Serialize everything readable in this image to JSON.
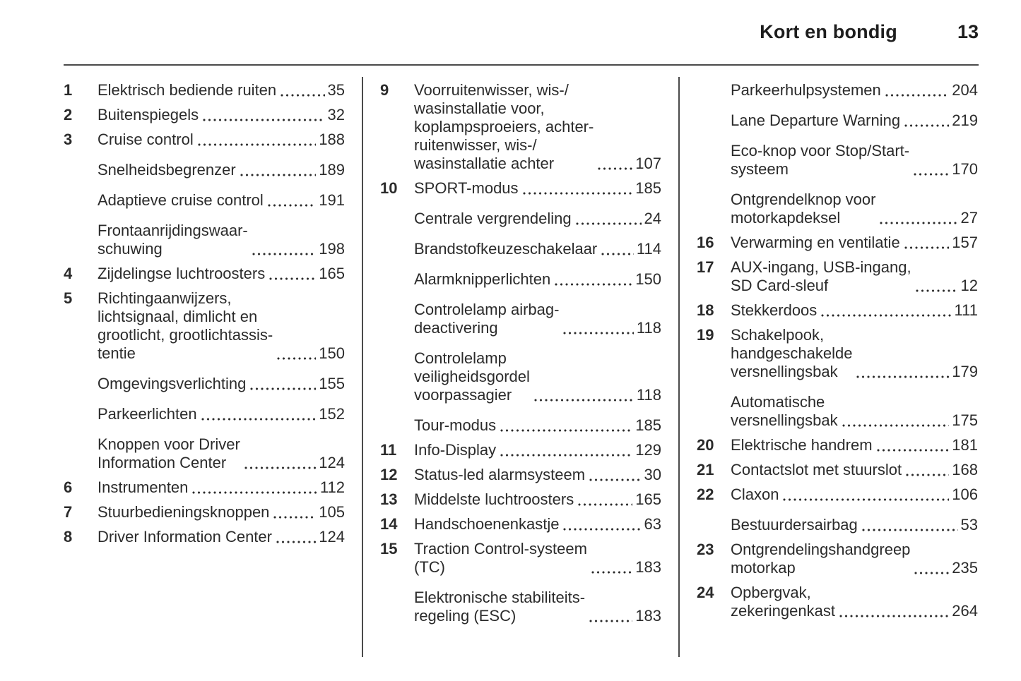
{
  "header": {
    "chapter_title": "Kort en bondig",
    "page_number": "13"
  },
  "colors": {
    "text": "#2b2b2b",
    "rule": "#4a4a4a"
  },
  "columns": [
    {
      "entries": [
        {
          "num": "1",
          "label": "Elektrisch bediende ruiten",
          "page": "35"
        },
        {
          "num": "2",
          "label": "Buitenspiegels",
          "page": "32"
        },
        {
          "num": "3",
          "label": "Cruise control",
          "page": "188"
        },
        {
          "num": "",
          "label": "Snelheidsbegrenzer",
          "page": "189"
        },
        {
          "num": "",
          "label": "Adaptieve cruise control",
          "page": "191"
        },
        {
          "num": "",
          "label": "Frontaanrijdingswaar-\nschuwing",
          "page": "198"
        },
        {
          "num": "4",
          "label": "Zijdelingse luchtroosters",
          "page": "165"
        },
        {
          "num": "5",
          "label": "Richtingaanwijzers,\nlichtsignaal, dimlicht en\ngrootlicht, grootlichtassis-\ntentie",
          "page": "150"
        },
        {
          "num": "",
          "label": "Omgevingsverlichting",
          "page": "155"
        },
        {
          "num": "",
          "label": "Parkeerlichten",
          "page": "152"
        },
        {
          "num": "",
          "label": "Knoppen voor Driver\nInformation Center",
          "page": "124"
        },
        {
          "num": "6",
          "label": "Instrumenten",
          "page": "112"
        },
        {
          "num": "7",
          "label": "Stuurbedieningsknoppen",
          "page": "105"
        },
        {
          "num": "8",
          "label": "Driver Information Center",
          "page": "124"
        }
      ]
    },
    {
      "entries": [
        {
          "num": "9",
          "label": "Voorruitenwisser, wis-/\nwasinstallatie voor,\nkoplampsproeiers, achter-\nruitenwisser, wis-/\nwasinstallatie achter",
          "page": "107"
        },
        {
          "num": "10",
          "label": "SPORT-modus",
          "page": "185"
        },
        {
          "num": "",
          "label": "Centrale vergrendeling",
          "page": "24"
        },
        {
          "num": "",
          "label": "Brandstofkeuzeschakelaar",
          "page": "114"
        },
        {
          "num": "",
          "label": "Alarmknipperlichten",
          "page": "150"
        },
        {
          "num": "",
          "label": "Controlelamp airbag-\ndeactivering",
          "page": "118"
        },
        {
          "num": "",
          "label": "Controlelamp\nveiligheidsgordel\nvoorpassagier",
          "page": "118"
        },
        {
          "num": "",
          "label": "Tour-modus",
          "page": "185"
        },
        {
          "num": "11",
          "label": "Info-Display",
          "page": "129"
        },
        {
          "num": "12",
          "label": "Status-led alarmsysteem",
          "page": "30"
        },
        {
          "num": "13",
          "label": "Middelste luchtroosters",
          "page": "165"
        },
        {
          "num": "14",
          "label": "Handschoenenkastje",
          "page": "63"
        },
        {
          "num": "15",
          "label": "Traction Control-systeem\n(TC)",
          "page": "183"
        },
        {
          "num": "",
          "label": "Elektronische stabiliteits-\nregeling (ESC)",
          "page": "183"
        }
      ]
    },
    {
      "entries": [
        {
          "num": "",
          "label": "Parkeerhulpsystemen",
          "page": "204"
        },
        {
          "num": "",
          "label": "Lane Departure Warning",
          "page": "219"
        },
        {
          "num": "",
          "label": "Eco-knop voor Stop/Start-\nsysteem",
          "page": "170"
        },
        {
          "num": "",
          "label": "Ontgrendelknop voor\nmotorkapdeksel",
          "page": "27"
        },
        {
          "num": "16",
          "label": "Verwarming en ventilatie",
          "page": "157"
        },
        {
          "num": "17",
          "label": "AUX-ingang, USB-ingang,\nSD Card-sleuf",
          "page": "12"
        },
        {
          "num": "18",
          "label": "Stekkerdoos",
          "page": "111"
        },
        {
          "num": "19",
          "label": "Schakelpook,\nhandgeschakelde\nversnellingsbak",
          "page": "179"
        },
        {
          "num": "",
          "label": "Automatische\nversnellingsbak",
          "page": "175"
        },
        {
          "num": "20",
          "label": "Elektrische handrem",
          "page": "181"
        },
        {
          "num": "21",
          "label": "Contactslot met stuurslot",
          "page": "168"
        },
        {
          "num": "22",
          "label": "Claxon",
          "page": "106"
        },
        {
          "num": "",
          "label": "Bestuurdersairbag",
          "page": "53"
        },
        {
          "num": "23",
          "label": "Ontgrendelingshandgreep\nmotorkap",
          "page": "235"
        },
        {
          "num": "24",
          "label": "Opbergvak,\nzekeringenkast",
          "page": "264"
        }
      ]
    }
  ]
}
